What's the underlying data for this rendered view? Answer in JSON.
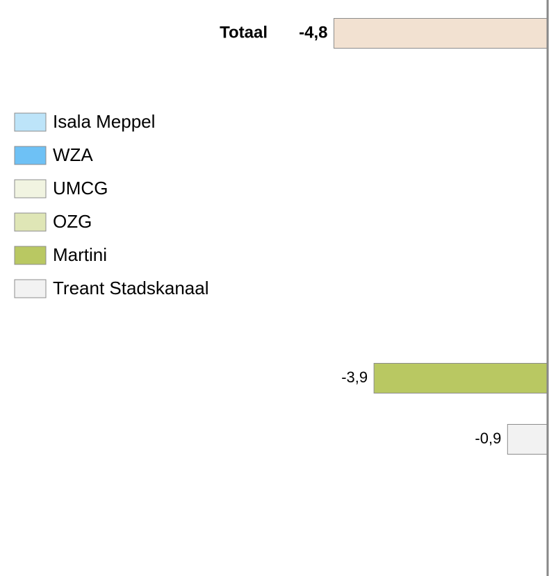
{
  "chart_data": {
    "type": "bar",
    "orientation": "horizontal",
    "categories": [
      "Totaal",
      null,
      null
    ],
    "values": [
      -4.8,
      -3.9,
      -0.9
    ],
    "value_labels": [
      "-4,8",
      "-3,9",
      "-0,9"
    ],
    "colors": [
      "#f2e1d1",
      "#b9c862",
      "#f2f2f2"
    ],
    "xlim": [
      -12.3,
      0
    ],
    "legend_position": "left",
    "series": [
      {
        "name": "Isala Meppel",
        "color": "#bde4f9"
      },
      {
        "name": "WZA",
        "color": "#6ec1f5"
      },
      {
        "name": "UMCG",
        "color": "#f1f4e1"
      },
      {
        "name": "OZG",
        "color": "#dfe6b6"
      },
      {
        "name": "Martini",
        "color": "#b9c862"
      },
      {
        "name": "Treant Stadskanaal",
        "color": "#f2f2f2"
      }
    ]
  }
}
